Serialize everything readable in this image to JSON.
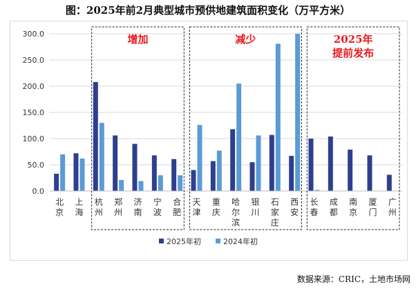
{
  "title": "图：2025年前2月典型城市预供地建筑面积变化（万平方米）",
  "source": "数据来源：CRIC，土地市场网",
  "colors": {
    "series1": "#2f3f8f",
    "series2": "#5b9bd5",
    "group_label": "#e8191c",
    "grid": "#d9d9d9"
  },
  "chart_data": {
    "type": "bar",
    "title": "图：2025年前2月典型城市预供地建筑面积变化（万平方米）",
    "categories": [
      "北京",
      "上海",
      "杭州",
      "郑州",
      "济南",
      "宁波",
      "合肥",
      "天津",
      "重庆",
      "哈尔滨",
      "银川",
      "石家庄",
      "西安",
      "长春",
      "成都",
      "南京",
      "厦门",
      "广州"
    ],
    "series": [
      {
        "name": "2025年初",
        "values": [
          33,
          72,
          208,
          106,
          90,
          68,
          61,
          40,
          57,
          118,
          55,
          107,
          67,
          100,
          104,
          79,
          68,
          31
        ]
      },
      {
        "name": "2024年初",
        "values": [
          70,
          62,
          130,
          21,
          19,
          30,
          30,
          126,
          77,
          205,
          106,
          281,
          300,
          2,
          0,
          0,
          0,
          0
        ]
      }
    ],
    "ylim": [
      0,
      300
    ],
    "yticks": [
      "0.0",
      "50.0",
      "100.0",
      "150.0",
      "200.0",
      "250.0",
      "300.0"
    ],
    "groups": [
      {
        "label": "增加",
        "start": 2,
        "end": 6
      },
      {
        "label": "减少",
        "start": 7,
        "end": 12
      },
      {
        "label": "2025年提前发布",
        "start": 13,
        "end": 17
      }
    ],
    "legend_position": "bottom"
  }
}
